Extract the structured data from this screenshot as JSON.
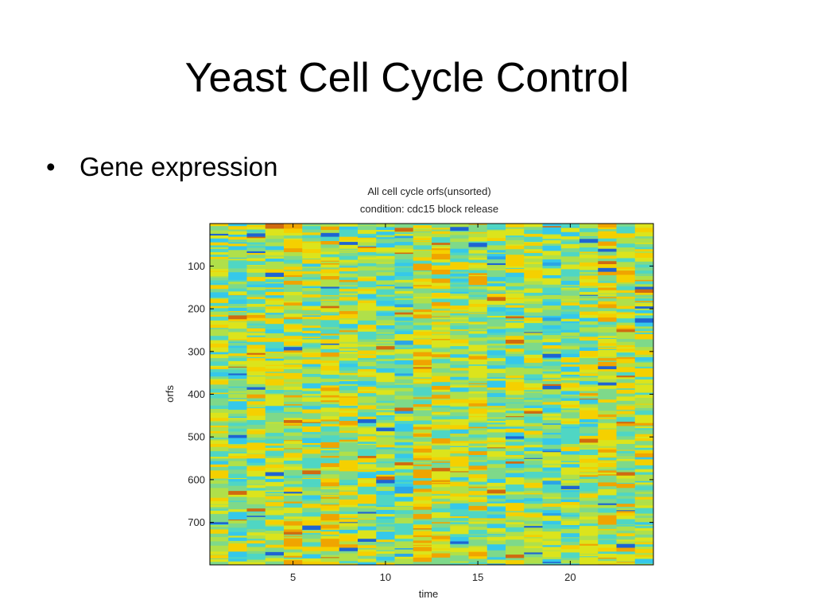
{
  "slide": {
    "title": "Yeast Cell Cycle Control",
    "bullet": "Gene expression",
    "bullet_symbol": "•"
  },
  "chart_data": {
    "type": "heatmap",
    "title": "All cell cycle orfs(unsorted)",
    "subtitle": "condition: cdc15 block release",
    "xlabel": "time",
    "ylabel": "orfs",
    "x_ticks": [
      5,
      10,
      15,
      20
    ],
    "y_ticks": [
      100,
      200,
      300,
      400,
      500,
      600,
      700
    ],
    "xlim": [
      0.5,
      24.5
    ],
    "ylim": [
      0.5,
      799.5
    ],
    "n_columns": 24,
    "n_rows": 799,
    "colormap": "jet",
    "colors": {
      "palette": [
        "#1e64d2",
        "#2aa5e8",
        "#35c8ea",
        "#4fd6c4",
        "#7ed98a",
        "#b0e04a",
        "#dce41c",
        "#f5d000",
        "#f0a400",
        "#d06a10"
      ]
    }
  }
}
